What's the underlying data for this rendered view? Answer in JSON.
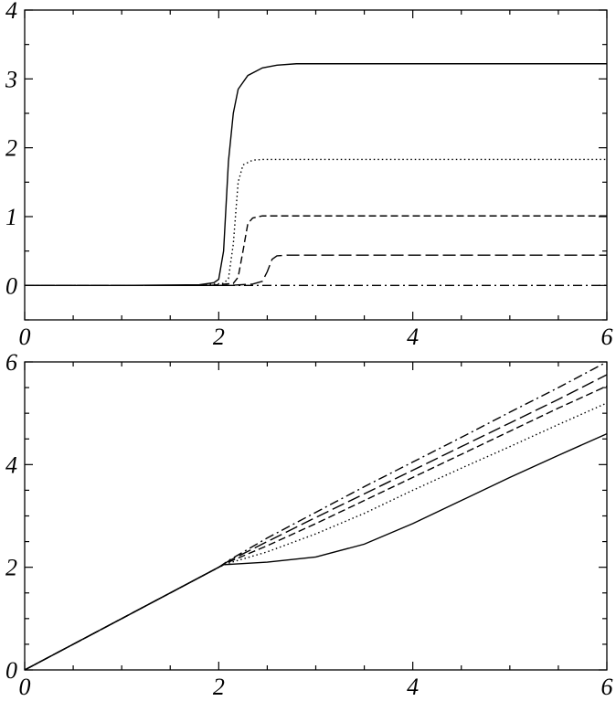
{
  "chart_data": [
    {
      "type": "line",
      "title": "",
      "xlabel": "",
      "ylabel": "",
      "xlim": [
        0,
        6
      ],
      "ylim": [
        -0.5,
        4
      ],
      "x_ticks": [
        "0",
        "2",
        "4",
        "6"
      ],
      "y_ticks": [
        "0",
        "1",
        "2",
        "3",
        "4"
      ],
      "grid": false,
      "legend": "none",
      "series": [
        {
          "style": "solid",
          "x": [
            0,
            1.0,
            1.8,
            1.95,
            2.0,
            2.05,
            2.1,
            2.15,
            2.2,
            2.3,
            2.45,
            2.6,
            2.8,
            3.0,
            6.0
          ],
          "y": [
            0,
            0,
            0.01,
            0.04,
            0.09,
            0.5,
            1.8,
            2.5,
            2.85,
            3.05,
            3.16,
            3.2,
            3.22,
            3.22,
            3.22
          ]
        },
        {
          "style": "dotted",
          "x": [
            0,
            1.8,
            2.05,
            2.1,
            2.15,
            2.2,
            2.25,
            2.35,
            2.45,
            6.0
          ],
          "y": [
            0,
            0,
            0.03,
            0.1,
            0.6,
            1.5,
            1.75,
            1.82,
            1.83,
            1.83
          ]
        },
        {
          "style": "dashed",
          "x": [
            0,
            1.9,
            2.15,
            2.2,
            2.25,
            2.3,
            2.35,
            2.45,
            6.0
          ],
          "y": [
            0,
            0,
            0.03,
            0.12,
            0.5,
            0.9,
            0.98,
            1.01,
            1.01
          ]
        },
        {
          "style": "long-dashed",
          "x": [
            0,
            2.1,
            2.35,
            2.45,
            2.5,
            2.55,
            2.6,
            2.7,
            6.0
          ],
          "y": [
            0,
            0,
            0.02,
            0.06,
            0.2,
            0.38,
            0.43,
            0.44,
            0.44
          ]
        },
        {
          "style": "dash-dot",
          "x": [
            0,
            6.0
          ],
          "y": [
            0,
            0
          ]
        }
      ]
    },
    {
      "type": "line",
      "title": "",
      "xlabel": "",
      "ylabel": "",
      "xlim": [
        0,
        6
      ],
      "ylim": [
        0,
        6
      ],
      "x_ticks": [
        "0",
        "2",
        "4",
        "6"
      ],
      "y_ticks": [
        "0",
        "2",
        "4",
        "6"
      ],
      "grid": false,
      "legend": "none",
      "series": [
        {
          "style": "solid",
          "x": [
            0,
            1,
            2.0,
            2.05,
            2.5,
            3.0,
            3.5,
            4.0,
            4.5,
            5.0,
            5.5,
            6.0
          ],
          "y": [
            0,
            1,
            2.0,
            2.05,
            2.1,
            2.2,
            2.45,
            2.85,
            3.3,
            3.75,
            4.18,
            4.6
          ]
        },
        {
          "style": "dotted",
          "x": [
            0,
            1,
            2.0,
            2.1,
            2.5,
            3.0,
            3.5,
            4.0,
            4.5,
            5.0,
            5.5,
            6.0
          ],
          "y": [
            0,
            1,
            2.0,
            2.08,
            2.3,
            2.65,
            3.05,
            3.5,
            3.93,
            4.35,
            4.78,
            5.2
          ]
        },
        {
          "style": "dashed",
          "x": [
            0,
            1,
            2.0,
            2.1,
            2.5,
            3.0,
            3.5,
            4.0,
            4.5,
            5.0,
            5.5,
            6.0
          ],
          "y": [
            0,
            1,
            2.0,
            2.1,
            2.42,
            2.85,
            3.3,
            3.75,
            4.2,
            4.65,
            5.1,
            5.53
          ]
        },
        {
          "style": "long-dashed",
          "x": [
            0,
            1,
            2.0,
            2.1,
            2.5,
            3.0,
            3.5,
            4.0,
            4.5,
            5.0,
            5.5,
            6.0
          ],
          "y": [
            0,
            1,
            2.0,
            2.12,
            2.5,
            2.97,
            3.43,
            3.89,
            4.35,
            4.81,
            5.27,
            5.75
          ]
        },
        {
          "style": "dash-dot",
          "x": [
            0,
            1,
            2.0,
            2.1,
            2.5,
            3.0,
            3.5,
            4.0,
            4.5,
            5.0,
            5.5,
            6.0
          ],
          "y": [
            0,
            1,
            2.0,
            2.13,
            2.57,
            3.07,
            3.57,
            4.05,
            4.53,
            5.02,
            5.5,
            6.0
          ]
        }
      ]
    }
  ]
}
